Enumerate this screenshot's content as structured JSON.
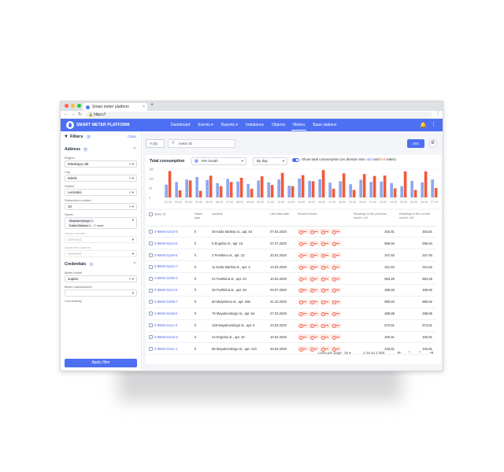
{
  "browser": {
    "tab_title": "Smart meter platform",
    "url": "https://",
    "colors": {
      "close": "#ff5f57",
      "minimize": "#febc2e",
      "maximize": "#28c840"
    }
  },
  "app": {
    "brand": "SMART METER PLATFORM",
    "menu": [
      {
        "label": "Dashboard",
        "active": false
      },
      {
        "label": "Events ▾",
        "active": false
      },
      {
        "label": "Reports ▾",
        "active": false
      },
      {
        "label": "Imbalance",
        "active": false
      },
      {
        "label": "Objects",
        "active": false
      },
      {
        "label": "Meters",
        "active": true
      },
      {
        "label": "Base stations",
        "active": false
      }
    ],
    "accent": "#4d6ff2"
  },
  "filters": {
    "title": "Filters",
    "count": "3",
    "clear": "Clear",
    "address": {
      "title": "Address",
      "badge": "5",
      "region_label": "Region",
      "region_value": "Minskaya obl.",
      "city_label": "City",
      "city_value": "Minsk",
      "district_label": "District",
      "district_value": "Leninskii",
      "subscriber_label": "Subscriber number",
      "subscriber_value": "10",
      "street_label": "Street",
      "street_chips": [
        "Mayakovskogo ×",
        "Karla Marksa ×"
      ],
      "street_more": "2 more",
      "house_label": "House number",
      "house_value": "Selected",
      "apartment_label": "Apartment number",
      "apartment_value": "Selected"
    },
    "credentials": {
      "title": "Credentials",
      "badge": "1",
      "model_label": "Meter model",
      "model_value": "Jupiter",
      "manufacturer_label": "Meter manufacturer",
      "manufacturer_value": "",
      "connectivity_label": "Connectivity"
    },
    "apply": "Apply filter"
  },
  "toolbar": {
    "filter_label": "Y  (4)",
    "search_placeholder": "meter ID",
    "xlsx_label": "xlsx"
  },
  "chart": {
    "title": "Total consumption",
    "period": "Per month",
    "grouping": "By day",
    "toggle_text_prefix": "Show total consumption (no division into ",
    "toggle_cold": "cold",
    "toggle_and": " and ",
    "toggle_hot": "hot",
    "toggle_suffix": " water)"
  },
  "chart_data": {
    "type": "bar",
    "yticks": [
      "150",
      "100",
      "50",
      "0"
    ],
    "ylim": [
      0,
      150
    ],
    "categories": [
      "01.03",
      "02.03",
      "03.03",
      "04.03",
      "05.03",
      "06.03",
      "07.03",
      "08.03",
      "09.03",
      "10.03",
      "11.03",
      "12.03",
      "13.03",
      "14.03",
      "15.03",
      "16.03",
      "17.03",
      "18.03",
      "19.03",
      "20.03",
      "21.03",
      "22.03",
      "23.03",
      "24.03",
      "25.03",
      "26.03",
      "27.03"
    ],
    "series": [
      {
        "name": "cold",
        "color": "#8fa7f0",
        "values": [
          68,
          82,
          95,
          108,
          92,
          76,
          98,
          85,
          72,
          90,
          80,
          95,
          62,
          100,
          88,
          96,
          78,
          86,
          70,
          94,
          82,
          84,
          76,
          60,
          88,
          80,
          95
        ]
      },
      {
        "name": "hot",
        "color": "#f05a3a",
        "values": [
          140,
          38,
          90,
          35,
          115,
          60,
          82,
          104,
          46,
          112,
          66,
          130,
          60,
          118,
          86,
          145,
          46,
          128,
          40,
          124,
          114,
          116,
          48,
          138,
          40,
          138,
          50
        ]
      }
    ]
  },
  "table": {
    "headers": {
      "meter_id": "Meter ID",
      "type": "Water type",
      "address": "Address",
      "last_date": "Last data date",
      "events": "Recent events",
      "prev": "Readings in the previous month, m3",
      "curr": "Readings in the current month, m3"
    },
    "rows": [
      {
        "id": "0-8968-01010-6",
        "type": "h",
        "address": "39 Karla Marksa st., apt. 54",
        "date": "07.03.2020",
        "prev": "304,81",
        "curr": "304,81"
      },
      {
        "id": "0-8968-01123-6",
        "type": "h",
        "address": "5 Engelsa st., apt. 15",
        "date": "07.07.2020",
        "prev": "596,94",
        "curr": "596,94"
      },
      {
        "id": "0-8968-01158-6",
        "type": "h",
        "address": "3 Pushkina st., apt. 23",
        "date": "20.02.2020",
        "prev": "347,93",
        "curr": "347,93"
      },
      {
        "id": "0-8968-01024-7",
        "type": "h",
        "address": "11 Karla Marksa st., apt. 4",
        "date": "13.03.2020",
        "prev": "321,62",
        "curr": "321,62"
      },
      {
        "id": "0-8968-01080-0",
        "type": "h",
        "address": "22 Pushkina st., apt. 23",
        "date": "10.04.2020",
        "prev": "953,29",
        "curr": "953,29"
      },
      {
        "id": "0-8968-01124-6",
        "type": "h",
        "address": "25 Pushkina st., apt. 48",
        "date": "03.07.2020",
        "prev": "489,92",
        "curr": "489,92"
      },
      {
        "id": "0-8968-01058-7",
        "type": "h",
        "address": "60 Malysheva st., apt. 256",
        "date": "31.10.2020",
        "prev": "980,82",
        "curr": "980,82"
      },
      {
        "id": "0-8968-01136-6",
        "type": "h",
        "address": "78 Mayakovskogo st., apt. 54",
        "date": "27.03.2020",
        "prev": "288,85",
        "curr": "288,85"
      },
      {
        "id": "0-8968-01114-0",
        "type": "h",
        "address": "128 Mayakovskogo st., apt. 8",
        "date": "23.03.2020",
        "prev": "673,61",
        "curr": "673,61"
      },
      {
        "id": "0-8968-01016-5",
        "type": "h",
        "address": "44 Engelsa st., apt. 40",
        "date": "10.04.2020",
        "prev": "200,81",
        "curr": "200,81"
      },
      {
        "id": "0-8968-01011-1",
        "type": "h",
        "address": "58 Mayakovskogo st., apt. 120",
        "date": "28.04.2020",
        "prev": "343,81",
        "curr": "343,81"
      }
    ]
  },
  "pagination": {
    "rows_label": "Lines per page:",
    "rows_value": "15 ▾",
    "range": "1-15 из 2 000"
  }
}
